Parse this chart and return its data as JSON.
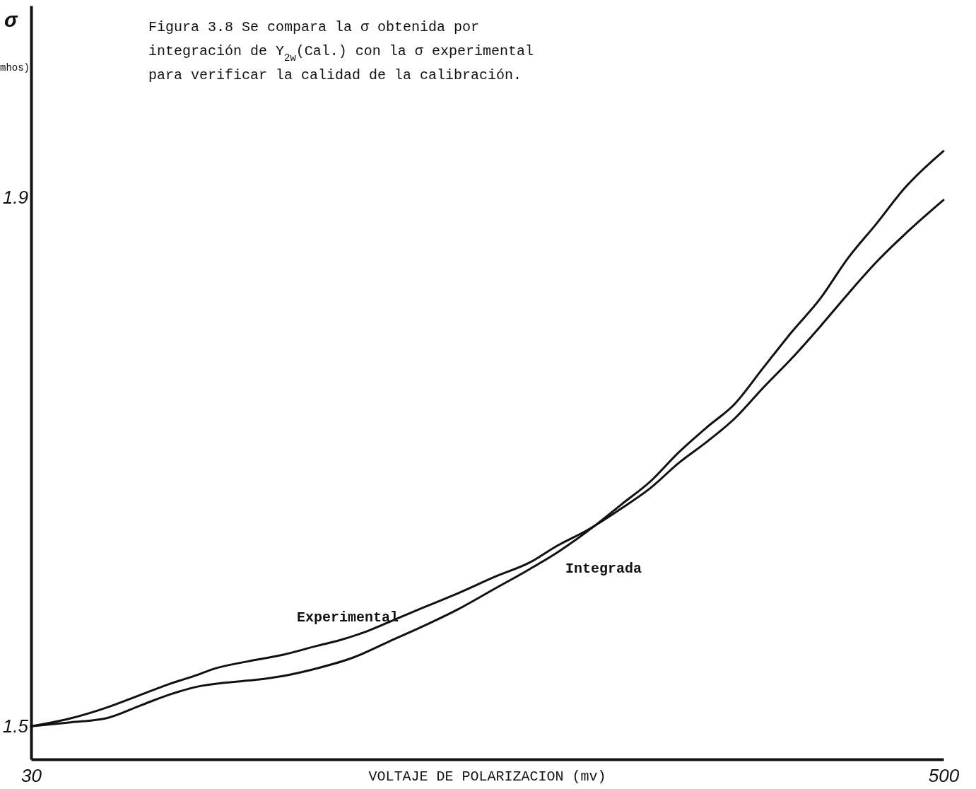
{
  "chart_data": {
    "type": "line",
    "title": "Figura 3.8 Se compara la σ obtenida por integración de Y$_{2w}$(Cal.) con la σ experimental para verificar la calidad de la calibración.",
    "xlabel": "VOLTAJE DE POLARIZACION (mv)",
    "ylabel": "σ mhos)",
    "xlim": [
      30,
      500
    ],
    "ylim": [
      1.475,
      2.045
    ],
    "xticks": [
      30,
      500
    ],
    "yticks": [
      1.5,
      1.9
    ],
    "series": [
      {
        "name": "Experimental",
        "color": "#111111",
        "x": [
          30,
          50.4,
          68.6,
          86.8,
          101.4,
          115.9,
          123.2,
          141.4,
          159.6,
          177.8,
          188.7,
          203.3,
          217.8,
          232.4,
          250.6,
          268.8,
          287.0,
          301.6,
          316.1,
          334.3,
          348.9,
          363.5,
          378.0,
          392.6,
          407.1,
          421.7,
          436.3,
          450.8,
          465.4,
          480.0,
          500
        ],
        "values": [
          1.5,
          1.506,
          1.514,
          1.524,
          1.532,
          1.539,
          1.543,
          1.549,
          1.554,
          1.561,
          1.565,
          1.572,
          1.581,
          1.59,
          1.601,
          1.613,
          1.624,
          1.637,
          1.648,
          1.665,
          1.68,
          1.699,
          1.715,
          1.733,
          1.756,
          1.778,
          1.802,
          1.827,
          1.851,
          1.872,
          1.898
        ]
      },
      {
        "name": "Integrada",
        "color": "#111111",
        "x": [
          30,
          50.4,
          68.6,
          86.8,
          101.4,
          115.9,
          130.5,
          145.0,
          159.6,
          177.8,
          196.0,
          214.2,
          232.4,
          250.6,
          268.8,
          287.0,
          301.6,
          319.8,
          334.3,
          348.9,
          363.5,
          378.0,
          392.6,
          407.1,
          421.7,
          436.3,
          450.8,
          465.4,
          480.0,
          500
        ],
        "values": [
          1.5,
          1.503,
          1.506,
          1.516,
          1.524,
          1.53,
          1.533,
          1.535,
          1.538,
          1.544,
          1.552,
          1.564,
          1.576,
          1.589,
          1.604,
          1.619,
          1.632,
          1.651,
          1.668,
          1.685,
          1.707,
          1.726,
          1.744,
          1.771,
          1.798,
          1.823,
          1.854,
          1.88,
          1.907,
          1.935
        ]
      }
    ]
  }
}
